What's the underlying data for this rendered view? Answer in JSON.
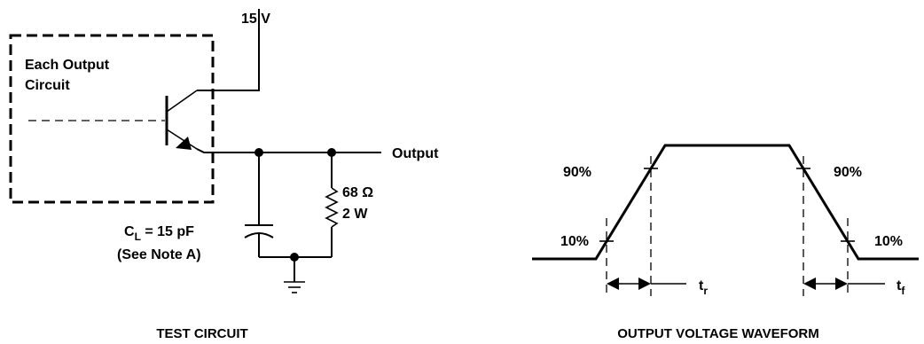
{
  "circuit": {
    "supply_label": "15 V",
    "box_label_line1": "Each Output",
    "box_label_line2": "Circuit",
    "output_label": "Output",
    "resistor_value": "68 Ω",
    "resistor_power": "2 W",
    "cap_label_main": "C",
    "cap_label_sub": "L",
    "cap_label_value": " = 15 pF",
    "cap_note": "(See Note A)",
    "caption": "TEST CIRCUIT"
  },
  "waveform": {
    "label_90_left": "90%",
    "label_90_right": "90%",
    "label_10_left": "10%",
    "label_10_right": "10%",
    "rise_label_main": "t",
    "rise_label_sub": "r",
    "fall_label_main": "t",
    "fall_label_sub": "f",
    "caption": "OUTPUT VOLTAGE WAVEFORM"
  }
}
